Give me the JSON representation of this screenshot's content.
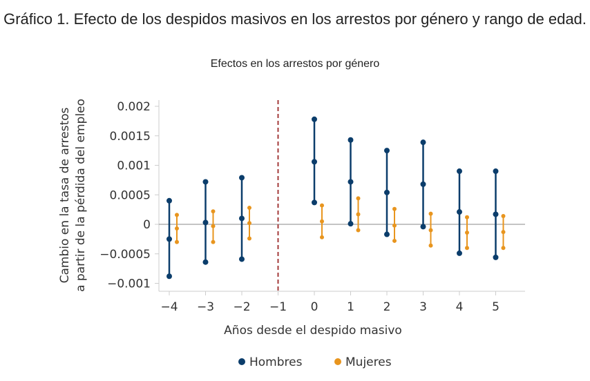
{
  "title": "Gráfico 1. Efecto de los despidos masivos en los arrestos por género y rango de edad.",
  "chart_data": {
    "type": "scatter",
    "title": "Efectos en los arrestos por género",
    "xlabel": "Años desde el despido masivo",
    "ylabel_lines": [
      "Cambio en la tasa de arrestos",
      "a partir de la pérdida del empleo"
    ],
    "x": [
      -4,
      -3,
      -2,
      0,
      1,
      2,
      3,
      4,
      5
    ],
    "xticks": [
      "−4",
      "−3",
      "−2",
      "−1",
      "0",
      "1",
      "2",
      "3",
      "4",
      "5"
    ],
    "xlim": [
      -4.2,
      5.8
    ],
    "yticks": [
      0.002,
      0.0015,
      0.001,
      0.0005,
      0,
      -0.0005,
      -0.001
    ],
    "ytick_labels": [
      "0.002",
      "0.0015",
      "0.001",
      "0.0005",
      "0",
      "−0.0005",
      "−0.001"
    ],
    "ylim": [
      -0.0011,
      0.0021
    ],
    "reference_line_x": -1,
    "legend_position": "bottom",
    "grid": false,
    "series": [
      {
        "name": "Hombres",
        "color": "#0b3d6b",
        "estimate": [
          -0.00025,
          3e-05,
          0.0001,
          0.00106,
          0.00072,
          0.00054,
          0.00068,
          0.00021,
          0.00017
        ],
        "upper": [
          0.0004,
          0.00072,
          0.00079,
          0.00178,
          0.00143,
          0.00125,
          0.00139,
          0.0009,
          0.0009
        ],
        "lower": [
          -0.00088,
          -0.00064,
          -0.00059,
          0.00037,
          1e-05,
          -0.00017,
          -4e-05,
          -0.00049,
          -0.00056
        ]
      },
      {
        "name": "Mujeres",
        "color": "#e8951e",
        "estimate": [
          -7e-05,
          -3e-05,
          2e-05,
          5e-05,
          0.00017,
          -2e-05,
          -0.0001,
          -0.00014,
          -0.00013
        ],
        "upper": [
          0.00016,
          0.00022,
          0.00028,
          0.00032,
          0.00044,
          0.00026,
          0.00018,
          0.00012,
          0.00014
        ],
        "lower": [
          -0.0003,
          -0.0003,
          -0.00024,
          -0.00022,
          -0.0001,
          -0.00028,
          -0.00036,
          -0.0004,
          -0.0004
        ]
      }
    ],
    "refline_color": "#a33a3a"
  }
}
